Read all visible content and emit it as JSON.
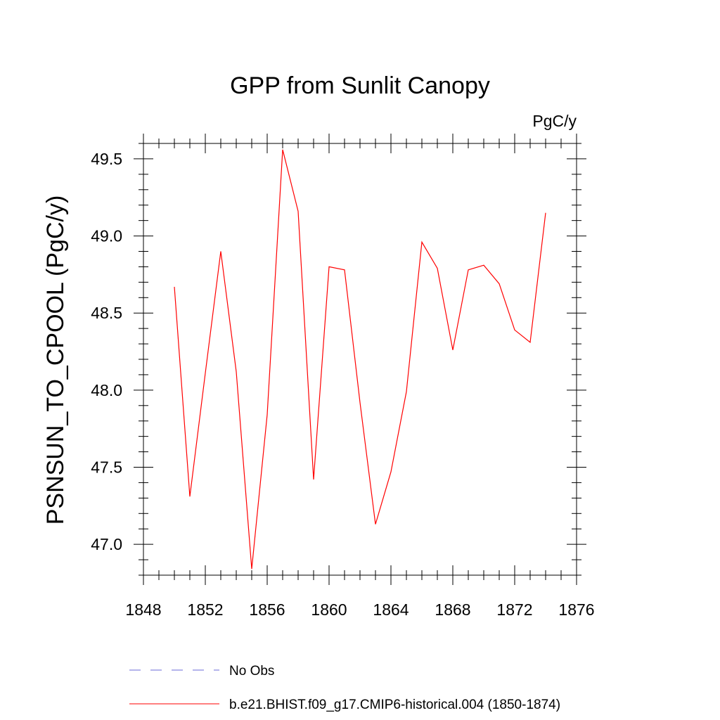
{
  "chart_data": {
    "type": "line",
    "title": "GPP from Sunlit Canopy",
    "units_label": "PgC/y",
    "xlabel": "",
    "ylabel": "PSNSUN_TO_CPOOL  (PgC/y)",
    "xlim": [
      1848,
      1876
    ],
    "ylim": [
      46.8,
      49.6
    ],
    "x_ticks": [
      1848,
      1852,
      1856,
      1860,
      1864,
      1868,
      1872,
      1876
    ],
    "x_tick_labels": [
      "1848",
      "1852",
      "1856",
      "1860",
      "1864",
      "1868",
      "1872",
      "1876"
    ],
    "y_ticks": [
      47.0,
      47.5,
      48.0,
      48.5,
      49.0,
      49.5
    ],
    "y_tick_labels": [
      "47.0",
      "47.5",
      "48.0",
      "48.5",
      "49.0",
      "49.5"
    ],
    "grid": false,
    "legend_position": "bottom",
    "series": [
      {
        "name": "b.e21.BHIST.f09_g17.CMIP6-historical.004 (1850-1874)",
        "color": "#ff0000",
        "x": [
          1850,
          1851,
          1852,
          1853,
          1854,
          1855,
          1856,
          1857,
          1858,
          1859,
          1860,
          1861,
          1862,
          1863,
          1864,
          1865,
          1866,
          1867,
          1868,
          1869,
          1870,
          1871,
          1872,
          1873,
          1874
        ],
        "y": [
          48.67,
          47.31,
          48.11,
          48.9,
          48.12,
          46.84,
          47.84,
          49.56,
          49.16,
          47.42,
          48.8,
          48.78,
          47.92,
          47.13,
          47.47,
          47.99,
          48.96,
          48.79,
          48.26,
          48.78,
          48.81,
          48.69,
          48.39,
          48.31,
          49.15
        ]
      }
    ],
    "legend": [
      {
        "label": "No Obs",
        "color": "#6a6ad8",
        "style": "dashed"
      },
      {
        "label": "b.e21.BHIST.f09_g17.CMIP6-historical.004 (1850-1874)",
        "color": "#ff0000",
        "style": "solid"
      }
    ]
  }
}
